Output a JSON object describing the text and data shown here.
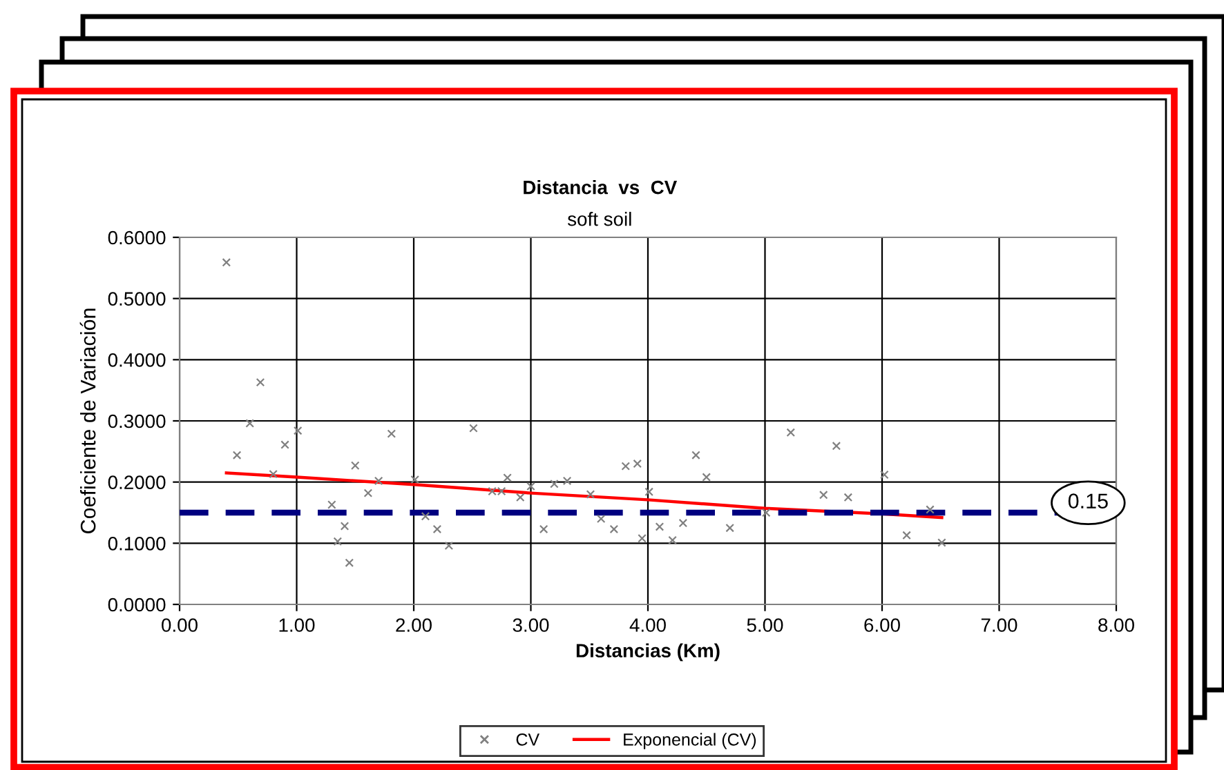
{
  "chart_data": {
    "type": "scatter",
    "title": "Distancia  vs  CV",
    "subtitle": "soft soil",
    "xlabel": "Distancias (Km)",
    "ylabel": "Coeficiente de Variación",
    "series": [
      {
        "name": "CV",
        "color": "#808080",
        "marker": "cross",
        "x": [
          0.4,
          0.49,
          0.6,
          0.69,
          0.8,
          0.9,
          1.01,
          1.3,
          1.35,
          1.41,
          1.45,
          1.5,
          1.61,
          1.7,
          1.81,
          2.01,
          2.1,
          2.2,
          2.3,
          2.51,
          2.67,
          2.75,
          2.8,
          2.91,
          3.0,
          3.11,
          3.2,
          3.31,
          3.51,
          3.6,
          3.71,
          3.81,
          3.91,
          3.95,
          4.01,
          4.1,
          4.21,
          4.3,
          4.41,
          4.5,
          4.7,
          5.01,
          5.22,
          5.5,
          5.61,
          5.71,
          6.02,
          6.21,
          6.41,
          6.51
        ],
        "values": [
          0.559,
          0.244,
          0.296,
          0.363,
          0.213,
          0.261,
          0.284,
          0.163,
          0.103,
          0.128,
          0.068,
          0.227,
          0.182,
          0.202,
          0.279,
          0.204,
          0.144,
          0.123,
          0.096,
          0.288,
          0.185,
          0.185,
          0.207,
          0.175,
          0.193,
          0.123,
          0.197,
          0.202,
          0.18,
          0.14,
          0.123,
          0.226,
          0.23,
          0.108,
          0.184,
          0.127,
          0.105,
          0.133,
          0.244,
          0.208,
          0.125,
          0.15,
          0.281,
          0.179,
          0.259,
          0.175,
          0.212,
          0.113,
          0.155,
          0.101
        ]
      },
      {
        "name": "Exponencial (CV)",
        "type": "line",
        "color": "#ff0000",
        "line_style": "solid",
        "marker": "none",
        "x": [
          0.4,
          1.0,
          2.0,
          3.0,
          4.0,
          5.0,
          6.0,
          6.51
        ],
        "values": [
          0.215,
          0.208,
          0.196,
          0.182,
          0.171,
          0.157,
          0.148,
          0.142
        ]
      }
    ],
    "ref_lines": [
      {
        "axis": "y",
        "value": 0.15,
        "label": "0.15",
        "color": "#000080",
        "line_style": "dashed"
      }
    ],
    "xlim": [
      0,
      8
    ],
    "ylim": [
      0,
      0.6
    ],
    "xticks": [
      {
        "value": 0,
        "label": "0.00"
      },
      {
        "value": 1,
        "label": "1.00"
      },
      {
        "value": 2,
        "label": "2.00"
      },
      {
        "value": 3,
        "label": "3.00"
      },
      {
        "value": 4,
        "label": "4.00"
      },
      {
        "value": 5,
        "label": "5.00"
      },
      {
        "value": 6,
        "label": "6.00"
      },
      {
        "value": 7,
        "label": "7.00"
      },
      {
        "value": 8,
        "label": "8.00"
      }
    ],
    "yticks": [
      {
        "value": 0,
        "label": "0.0000"
      },
      {
        "value": 0.1,
        "label": "0.1000"
      },
      {
        "value": 0.2,
        "label": "0.2000"
      },
      {
        "value": 0.3,
        "label": "0.3000"
      },
      {
        "value": 0.4,
        "label": "0.4000"
      },
      {
        "value": 0.5,
        "label": "0.5000"
      },
      {
        "value": 0.6,
        "label": "0.6000"
      }
    ],
    "grid": true,
    "legend": "bottom"
  }
}
